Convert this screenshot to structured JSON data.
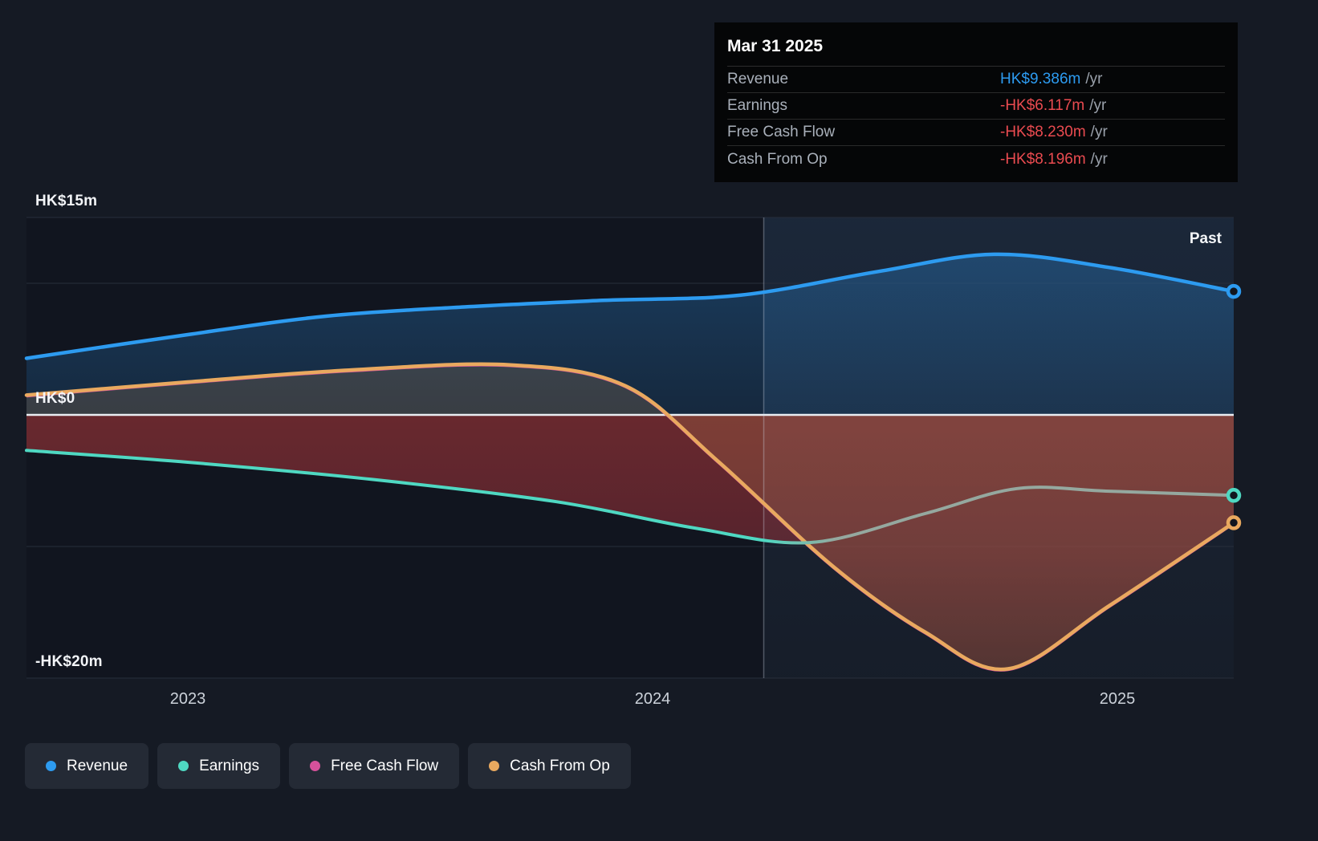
{
  "page": {
    "background": "#151a24"
  },
  "tooltip": {
    "title": "Mar 31 2025",
    "rows": [
      {
        "label": "Revenue",
        "value": "HK$9.386m",
        "unit": "/yr",
        "color": "#2d9bf0"
      },
      {
        "label": "Earnings",
        "value": "-HK$6.117m",
        "unit": "/yr",
        "color": "#ea4b50"
      },
      {
        "label": "Free Cash Flow",
        "value": "-HK$8.230m",
        "unit": "/yr",
        "color": "#ea4b50"
      },
      {
        "label": "Cash From Op",
        "value": "-HK$8.196m",
        "unit": "/yr",
        "color": "#ea4b50"
      }
    ]
  },
  "chart_data": {
    "type": "line",
    "title": "",
    "unit": "HK$ millions per year",
    "x_range": [
      2022.65,
      2025.27
    ],
    "x_ticks": [
      {
        "value": 2023,
        "label": "2023"
      },
      {
        "value": 2024,
        "label": "2024"
      },
      {
        "value": 2025,
        "label": "2025"
      }
    ],
    "y_range": [
      -20,
      15
    ],
    "y_gridlines": [
      15,
      10,
      0,
      -10,
      -20
    ],
    "y_labels": [
      {
        "value": 15,
        "text": "HK$15m"
      },
      {
        "value": 0,
        "text": "HK$0"
      },
      {
        "value": -20,
        "text": "-HK$20m"
      }
    ],
    "divider_x": 2024.25,
    "past_label": "Past",
    "series": [
      {
        "name": "Revenue",
        "color": "#2d9bf0",
        "x": [
          2022.65,
          2023.0,
          2023.3,
          2023.6,
          2023.9,
          2024.2,
          2024.5,
          2024.75,
          2025.0,
          2025.27
        ],
        "values": [
          4.3,
          6.1,
          7.5,
          8.2,
          8.7,
          9.1,
          10.9,
          12.2,
          11.2,
          9.386
        ]
      },
      {
        "name": "Earnings",
        "color": "#4fd8c2",
        "color_recent": "#95a89f",
        "x": [
          2022.65,
          2023.0,
          2023.4,
          2023.8,
          2024.1,
          2024.35,
          2024.6,
          2024.8,
          2025.0,
          2025.27
        ],
        "values": [
          -2.7,
          -3.6,
          -4.9,
          -6.6,
          -8.6,
          -9.7,
          -7.5,
          -5.6,
          -5.8,
          -6.117
        ]
      },
      {
        "name": "Free Cash Flow",
        "color": "#d6519b",
        "x": [
          2022.65,
          2023.0,
          2023.35,
          2023.7,
          2023.95,
          2024.15,
          2024.4,
          2024.6,
          2024.78,
          2025.0,
          2025.27
        ],
        "values": [
          1.45,
          2.45,
          3.35,
          3.75,
          2.15,
          -3.55,
          -11.55,
          -16.55,
          -19.35,
          -14.55,
          -8.23
        ]
      },
      {
        "name": "Cash From Op",
        "color": "#e9a95f",
        "x": [
          2022.65,
          2023.0,
          2023.35,
          2023.7,
          2023.95,
          2024.15,
          2024.4,
          2024.6,
          2024.78,
          2025.0,
          2025.27
        ],
        "values": [
          1.5,
          2.5,
          3.4,
          3.8,
          2.2,
          -3.5,
          -11.5,
          -16.5,
          -19.3,
          -14.5,
          -8.196
        ]
      }
    ]
  },
  "legend": [
    {
      "label": "Revenue",
      "color": "#2d9bf0"
    },
    {
      "label": "Earnings",
      "color": "#4fd8c2"
    },
    {
      "label": "Free Cash Flow",
      "color": "#d6519b"
    },
    {
      "label": "Cash From Op",
      "color": "#e9a95f"
    }
  ]
}
